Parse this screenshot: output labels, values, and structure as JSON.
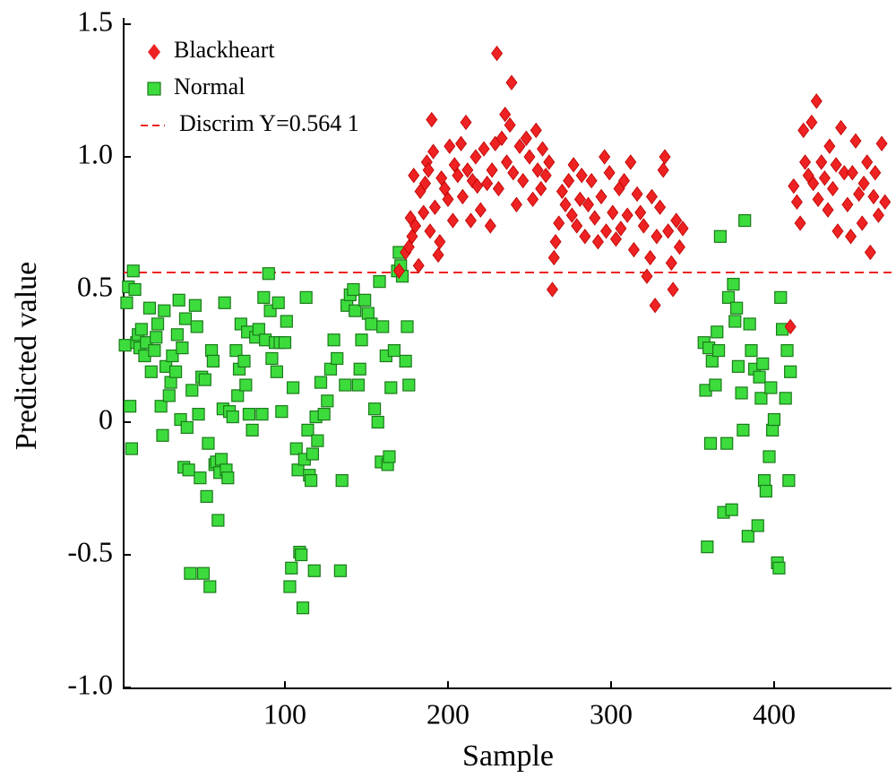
{
  "chart_data": {
    "type": "scatter",
    "x_label": "Sample",
    "y_label": "Predicted value",
    "xlim": [
      0,
      472
    ],
    "ylim": [
      -1.0,
      1.5
    ],
    "xticks": [
      100,
      200,
      300,
      400
    ],
    "yticks": [
      {
        "value": -1.0,
        "label": "-1.0"
      },
      -0.5,
      0,
      0.5,
      {
        "value": 1.0,
        "label": "1.0"
      },
      1.5
    ],
    "legend": "upper left",
    "reference_line": {
      "name": "Discrim Y=0.564 1",
      "value": 0.5641,
      "color": "#ee2222"
    },
    "series": [
      {
        "name": "Blackheart",
        "color": "#ee2222",
        "marker": "diamond",
        "x": [
          170,
          174,
          176,
          177,
          178,
          179,
          180,
          182,
          183,
          185,
          186,
          187,
          188,
          189,
          190,
          191,
          192,
          194,
          195,
          196,
          198,
          200,
          201,
          203,
          204,
          206,
          208,
          209,
          211,
          212,
          214,
          215,
          217,
          218,
          220,
          222,
          224,
          226,
          227,
          229,
          230,
          231,
          233,
          235,
          236,
          238,
          239,
          240,
          242,
          244,
          246,
          248,
          250,
          252,
          254,
          255,
          257,
          258,
          260,
          262,
          264,
          265,
          266,
          268,
          270,
          272,
          274,
          276,
          277,
          279,
          281,
          282,
          284,
          286,
          288,
          290,
          292,
          294,
          296,
          297,
          299,
          301,
          303,
          305,
          306,
          308,
          310,
          312,
          314,
          316,
          318,
          320,
          322,
          324,
          325,
          327,
          328,
          330,
          332,
          333,
          335,
          337,
          338,
          340,
          342,
          344,
          410,
          412,
          414,
          416,
          418,
          419,
          421,
          423,
          424,
          426,
          427,
          429,
          431,
          433,
          434,
          436,
          438,
          439,
          441,
          443,
          445,
          447,
          448,
          450,
          452,
          454,
          455,
          457,
          459,
          461,
          462,
          464,
          466,
          468
        ],
        "values": [
          0.57,
          0.64,
          0.66,
          0.77,
          0.7,
          0.93,
          0.74,
          0.59,
          0.87,
          0.79,
          0.9,
          0.98,
          0.95,
          0.72,
          1.14,
          1.02,
          0.81,
          0.63,
          0.68,
          0.92,
          0.88,
          0.84,
          1.04,
          0.76,
          0.97,
          0.93,
          1.05,
          0.85,
          1.13,
          0.95,
          0.76,
          0.91,
          1.0,
          0.89,
          0.8,
          1.03,
          0.9,
          0.74,
          0.95,
          1.05,
          1.39,
          0.88,
          1.07,
          1.16,
          0.98,
          1.12,
          1.28,
          0.94,
          0.82,
          1.04,
          0.91,
          1.07,
          1.0,
          0.84,
          1.1,
          0.95,
          0.88,
          1.03,
          0.93,
          0.98,
          0.5,
          0.62,
          0.68,
          0.75,
          0.87,
          0.82,
          0.91,
          0.78,
          0.97,
          0.74,
          0.84,
          0.93,
          0.7,
          0.82,
          0.91,
          0.77,
          0.68,
          0.85,
          1.0,
          0.72,
          0.94,
          0.79,
          0.69,
          0.88,
          0.73,
          0.91,
          0.78,
          0.98,
          0.65,
          0.86,
          0.79,
          0.74,
          0.55,
          0.62,
          0.85,
          0.44,
          0.7,
          0.81,
          0.95,
          1.0,
          0.72,
          0.6,
          0.5,
          0.76,
          0.66,
          0.73,
          0.36,
          0.89,
          0.83,
          0.75,
          1.1,
          0.98,
          0.93,
          1.13,
          0.9,
          1.21,
          0.84,
          0.98,
          0.92,
          0.8,
          1.04,
          0.88,
          0.97,
          0.72,
          1.11,
          0.94,
          0.82,
          0.7,
          0.94,
          1.06,
          0.86,
          0.75,
          0.9,
          0.98,
          0.64,
          0.85,
          0.94,
          0.78,
          1.05,
          0.83
        ]
      },
      {
        "name": "Normal",
        "color": "#3ddc3d",
        "marker": "square",
        "x": [
          2,
          3,
          4,
          5,
          6,
          7,
          8,
          9,
          10,
          11,
          12,
          14,
          15,
          17,
          18,
          20,
          21,
          22,
          24,
          25,
          26,
          27,
          29,
          30,
          31,
          33,
          34,
          35,
          36,
          37,
          38,
          39,
          40,
          41,
          42,
          43,
          45,
          46,
          47,
          48,
          49,
          50,
          51,
          52,
          53,
          54,
          55,
          56,
          57,
          58,
          59,
          60,
          61,
          62,
          63,
          64,
          65,
          66,
          68,
          70,
          71,
          72,
          73,
          75,
          76,
          77,
          78,
          80,
          82,
          84,
          86,
          87,
          88,
          90,
          91,
          92,
          94,
          95,
          96,
          97,
          98,
          100,
          101,
          103,
          104,
          105,
          107,
          108,
          109,
          110,
          111,
          112,
          113,
          114,
          115,
          116,
          117,
          118,
          119,
          120,
          122,
          124,
          126,
          128,
          130,
          132,
          134,
          135,
          137,
          138,
          140,
          142,
          143,
          145,
          146,
          147,
          149,
          151,
          153,
          155,
          157,
          158,
          159,
          160,
          162,
          163,
          164,
          165,
          167,
          169,
          170,
          171,
          172,
          174,
          175,
          176,
          357,
          358,
          359,
          360,
          361,
          362,
          364,
          365,
          366,
          367,
          369,
          371,
          372,
          374,
          375,
          376,
          377,
          378,
          380,
          381,
          382,
          384,
          385,
          386,
          388,
          390,
          391,
          392,
          393,
          394,
          395,
          397,
          398,
          399,
          400,
          402,
          403,
          404,
          405,
          407,
          408,
          409,
          410
        ],
        "values": [
          0.29,
          0.45,
          0.51,
          0.06,
          -0.1,
          0.57,
          0.5,
          0.3,
          0.33,
          0.28,
          0.35,
          0.25,
          0.3,
          0.43,
          0.19,
          0.27,
          0.32,
          0.37,
          0.06,
          -0.05,
          0.42,
          0.21,
          0.1,
          0.15,
          0.25,
          0.19,
          0.33,
          0.46,
          0.01,
          0.28,
          -0.17,
          0.39,
          -0.02,
          -0.18,
          -0.57,
          0.12,
          0.44,
          0.36,
          0.03,
          -0.21,
          0.17,
          -0.57,
          0.16,
          -0.28,
          -0.08,
          -0.62,
          0.27,
          0.23,
          -0.16,
          -0.15,
          -0.37,
          -0.19,
          -0.14,
          0.05,
          0.45,
          -0.18,
          -0.21,
          0.04,
          0.02,
          0.27,
          0.1,
          0.2,
          0.37,
          0.23,
          0.14,
          0.34,
          0.03,
          -0.03,
          0.32,
          0.35,
          0.03,
          0.47,
          0.31,
          0.56,
          0.42,
          0.24,
          0.3,
          0.19,
          0.45,
          0.3,
          0.04,
          0.3,
          0.38,
          -0.62,
          -0.55,
          0.13,
          -0.1,
          -0.18,
          -0.49,
          -0.5,
          -0.7,
          -0.14,
          0.47,
          -0.03,
          -0.2,
          -0.22,
          -0.12,
          -0.56,
          0.02,
          -0.07,
          0.15,
          0.03,
          0.08,
          0.2,
          0.31,
          0.24,
          -0.56,
          -0.22,
          0.14,
          0.44,
          0.48,
          0.5,
          0.42,
          0.14,
          0.2,
          0.31,
          0.46,
          0.41,
          0.37,
          0.05,
          0.0,
          0.53,
          -0.15,
          0.36,
          0.25,
          -0.16,
          -0.13,
          0.13,
          0.27,
          0.57,
          0.64,
          0.59,
          0.55,
          0.23,
          0.36,
          0.14,
          0.3,
          0.12,
          -0.47,
          0.28,
          -0.08,
          0.23,
          0.14,
          0.34,
          0.27,
          0.7,
          -0.34,
          -0.08,
          0.47,
          -0.33,
          0.52,
          0.38,
          0.43,
          0.21,
          0.11,
          -0.03,
          0.76,
          -0.43,
          0.37,
          0.27,
          0.2,
          -0.39,
          0.17,
          0.09,
          0.22,
          -0.22,
          -0.26,
          -0.13,
          0.13,
          -0.03,
          0.01,
          -0.53,
          -0.55,
          0.47,
          0.35,
          0.09,
          0.27,
          -0.22,
          0.19
        ]
      }
    ]
  }
}
